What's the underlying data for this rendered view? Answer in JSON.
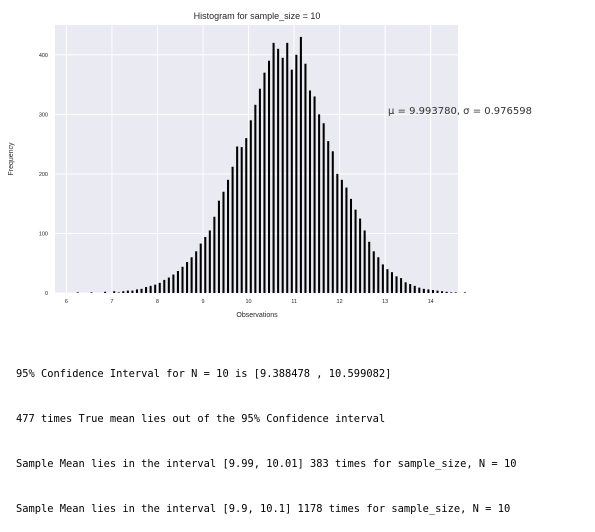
{
  "chart_data": {
    "type": "bar",
    "title": "Histogram for sample_size = 10",
    "xlabel": "Observations",
    "ylabel": "Frequency",
    "xlim": [
      5.75,
      14.6
    ],
    "ylim": [
      0,
      450
    ],
    "xticks": [
      6,
      7,
      8,
      9,
      10,
      11,
      12,
      13,
      14
    ],
    "yticks": [
      0,
      100,
      200,
      300,
      400
    ],
    "grid": true,
    "bar_color": "#000000",
    "plot_background": "#eaeaf2",
    "annotation": "μ = 9.993780,  σ = 0.976598",
    "bin_width": 0.1,
    "bin_start": 6.2,
    "values": [
      1,
      0,
      0,
      1,
      0,
      0,
      2,
      0,
      3,
      1,
      3,
      4,
      4,
      6,
      7,
      10,
      12,
      14,
      17,
      22,
      26,
      31,
      37,
      44,
      52,
      60,
      70,
      83,
      94,
      105,
      128,
      155,
      170,
      190,
      212,
      246,
      245,
      260,
      290,
      316,
      343,
      370,
      390,
      420,
      410,
      395,
      420,
      375,
      400,
      430,
      385,
      340,
      330,
      300,
      285,
      255,
      238,
      200,
      190,
      177,
      158,
      140,
      125,
      105,
      86,
      70,
      60,
      48,
      40,
      35,
      28,
      25,
      18,
      15,
      12,
      9,
      7,
      6,
      5,
      4,
      3,
      2,
      1,
      1,
      0,
      1
    ]
  },
  "output_lines": [
    "95% Confidence Interval for N = 10 is [9.388478 , 10.599082]",
    "477 times True mean lies out of the 95% Confidence interval",
    "Sample Mean lies in the interval [9.99, 10.01] 383 times for sample_size, N = 10",
    "Sample Mean lies in the interval [9.9, 10.1] 1178 times for sample_size, N = 10"
  ]
}
